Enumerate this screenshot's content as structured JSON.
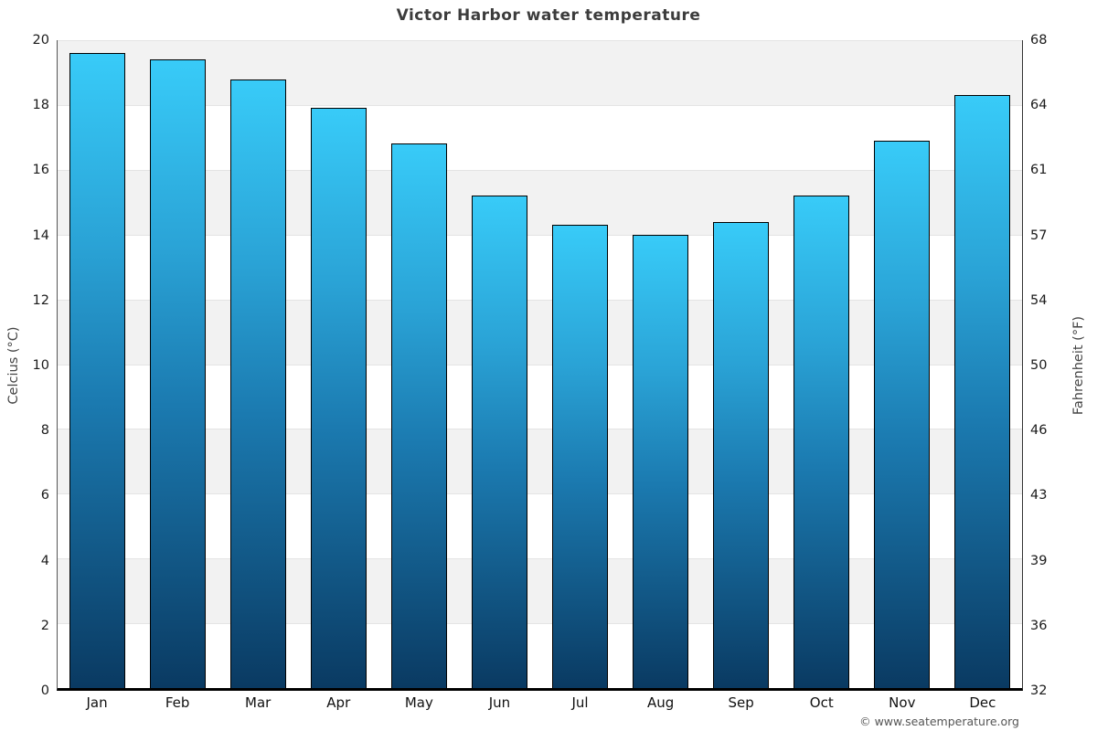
{
  "title": "Victor Harbor water temperature",
  "footer": "© www.seatemperature.org",
  "chart_data": {
    "type": "bar",
    "title": "Victor Harbor water temperature",
    "categories": [
      "Jan",
      "Feb",
      "Mar",
      "Apr",
      "May",
      "Jun",
      "Jul",
      "Aug",
      "Sep",
      "Oct",
      "Nov",
      "Dec"
    ],
    "values": [
      19.6,
      19.4,
      18.8,
      17.9,
      16.8,
      15.2,
      14.3,
      14.0,
      14.4,
      15.2,
      16.9,
      18.3
    ],
    "xlabel": "",
    "ylabel": "Celcius (°C)",
    "ylabel_right": "Fahrenheit (°F)",
    "ylim": [
      0,
      20
    ],
    "left_ticks": [
      20,
      18,
      16,
      14,
      12,
      10,
      8,
      6,
      4,
      2,
      0
    ],
    "right_ticks": [
      68,
      64,
      61,
      57,
      54,
      50,
      46,
      43,
      39,
      36,
      32
    ],
    "grid": "horizontal-bands-alternating",
    "legend": "none",
    "band_pattern_top_first": "shaded"
  },
  "colors": {
    "bar_gradient_top": "#38cbf8",
    "bar_gradient_mid1": "#2aa3d6",
    "bar_gradient_mid2": "#1b7ab0",
    "bar_gradient_bottom": "#0a3a62",
    "bar_border": "#000000",
    "band_shaded": "#f2f2f2",
    "band_plain": "#ffffff",
    "gridline": "#e4e4e4",
    "x_axis_line": "#000000",
    "title_color": "#3c3c3c",
    "tick_label_color": "#1a1a1a",
    "axis_label_color": "#444444",
    "footer_color": "#555555"
  }
}
